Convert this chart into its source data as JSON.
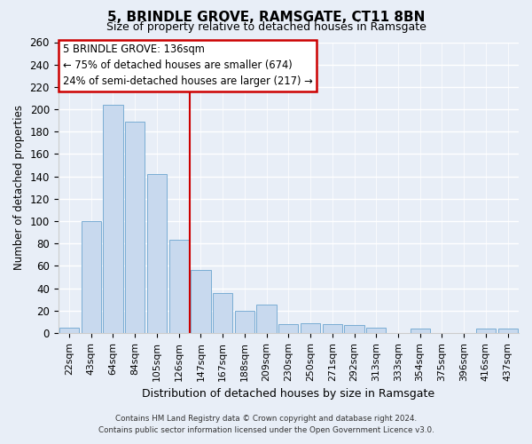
{
  "title": "5, BRINDLE GROVE, RAMSGATE, CT11 8BN",
  "subtitle": "Size of property relative to detached houses in Ramsgate",
  "xlabel": "Distribution of detached houses by size in Ramsgate",
  "ylabel": "Number of detached properties",
  "bar_color": "#c8d9ee",
  "bar_edge_color": "#7aadd4",
  "categories": [
    "22sqm",
    "43sqm",
    "64sqm",
    "84sqm",
    "105sqm",
    "126sqm",
    "147sqm",
    "167sqm",
    "188sqm",
    "209sqm",
    "230sqm",
    "250sqm",
    "271sqm",
    "292sqm",
    "313sqm",
    "333sqm",
    "354sqm",
    "375sqm",
    "396sqm",
    "416sqm",
    "437sqm"
  ],
  "values": [
    5,
    100,
    204,
    189,
    142,
    83,
    56,
    36,
    20,
    25,
    8,
    9,
    8,
    7,
    5,
    0,
    4,
    0,
    0,
    4,
    4
  ],
  "ylim": [
    0,
    260
  ],
  "yticks": [
    0,
    20,
    40,
    60,
    80,
    100,
    120,
    140,
    160,
    180,
    200,
    220,
    240,
    260
  ],
  "vline_x": 5.5,
  "vline_color": "#cc0000",
  "annotation_title": "5 BRINDLE GROVE: 136sqm",
  "annotation_line1": "← 75% of detached houses are smaller (674)",
  "annotation_line2": "24% of semi-detached houses are larger (217) →",
  "annotation_box_facecolor": "#ffffff",
  "annotation_box_edgecolor": "#cc0000",
  "footer_line1": "Contains HM Land Registry data © Crown copyright and database right 2024.",
  "footer_line2": "Contains public sector information licensed under the Open Government Licence v3.0.",
  "background_color": "#e8eef7",
  "grid_color": "#ffffff"
}
